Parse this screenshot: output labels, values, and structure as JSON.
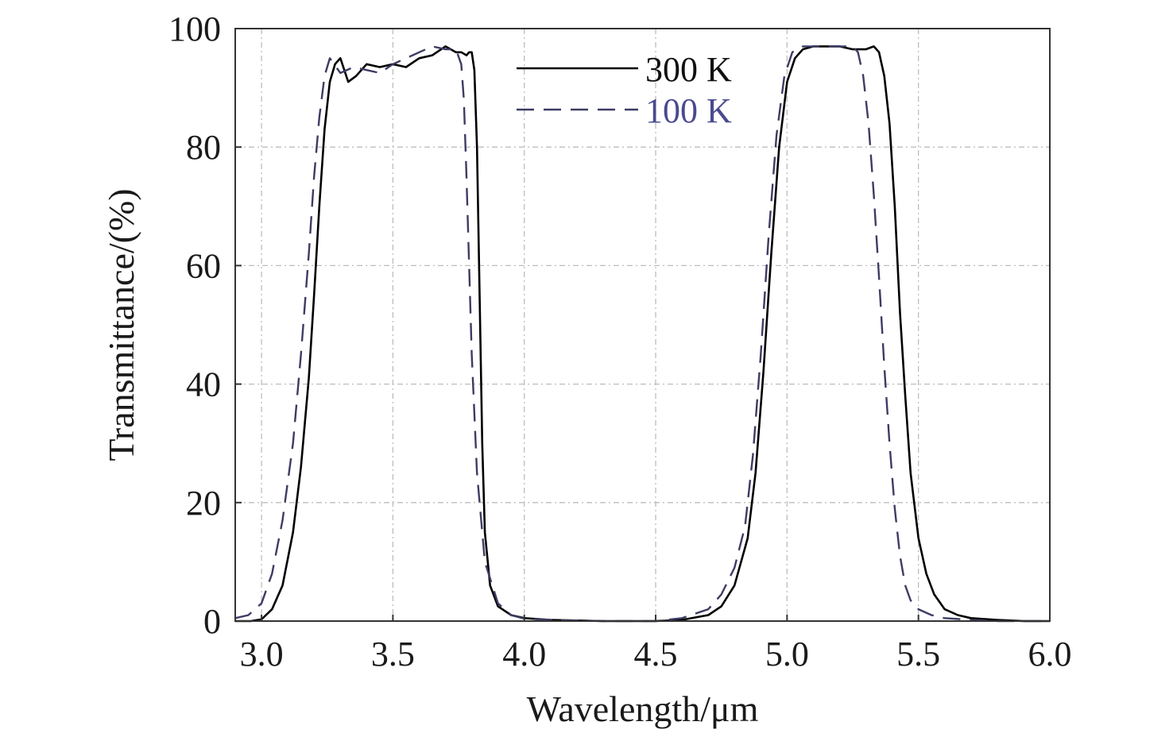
{
  "chart_data": {
    "type": "line",
    "xlabel": "Wavelength/μm",
    "ylabel": "Transmittance/(%)",
    "xlim": [
      2.9,
      6.0
    ],
    "ylim": [
      0,
      100
    ],
    "xticks": [
      "3.0",
      "3.5",
      "4.0",
      "4.5",
      "5.0",
      "5.5",
      "6.0"
    ],
    "yticks": [
      "0",
      "20",
      "40",
      "60",
      "80",
      "100"
    ],
    "grid": true,
    "legend_position": "top-center",
    "series": [
      {
        "name": "300 K",
        "color": "#000000",
        "style": "solid",
        "label_color": "#111111",
        "x": [
          2.9,
          2.96,
          3.0,
          3.04,
          3.08,
          3.12,
          3.15,
          3.18,
          3.2,
          3.22,
          3.24,
          3.26,
          3.28,
          3.3,
          3.33,
          3.36,
          3.4,
          3.45,
          3.5,
          3.55,
          3.6,
          3.65,
          3.7,
          3.74,
          3.76,
          3.78,
          3.79,
          3.8,
          3.81,
          3.82,
          3.83,
          3.84,
          3.85,
          3.87,
          3.9,
          3.95,
          4.0,
          4.1,
          4.3,
          4.5,
          4.6,
          4.7,
          4.75,
          4.8,
          4.85,
          4.88,
          4.91,
          4.94,
          4.97,
          5.0,
          5.03,
          5.06,
          5.1,
          5.15,
          5.2,
          5.25,
          5.3,
          5.33,
          5.35,
          5.37,
          5.39,
          5.41,
          5.43,
          5.45,
          5.47,
          5.5,
          5.53,
          5.56,
          5.6,
          5.65,
          5.7,
          5.8,
          5.9,
          6.0
        ],
        "y": [
          0,
          0,
          0.3,
          2,
          6,
          15,
          26,
          41,
          55,
          70,
          83,
          91,
          94,
          95,
          91,
          92,
          94,
          93.5,
          94,
          93.5,
          95,
          95.5,
          97,
          96,
          96,
          95.5,
          96,
          96,
          93,
          80,
          55,
          30,
          15,
          6,
          2.5,
          1,
          0.5,
          0.2,
          0,
          0,
          0.2,
          1,
          2.5,
          6,
          14,
          25,
          42,
          62,
          80,
          91,
          95,
          96.5,
          97,
          97,
          97,
          96.5,
          96.5,
          97,
          96,
          92,
          84,
          70,
          52,
          38,
          25,
          14,
          8,
          4.5,
          2,
          1,
          0.5,
          0.2,
          0,
          0
        ]
      },
      {
        "name": "100 K",
        "color": "#3c3c64",
        "style": "dashed",
        "label_color": "#4a4a8f",
        "x": [
          2.9,
          2.95,
          3.0,
          3.04,
          3.08,
          3.12,
          3.15,
          3.18,
          3.2,
          3.22,
          3.24,
          3.26,
          3.3,
          3.35,
          3.4,
          3.45,
          3.5,
          3.55,
          3.6,
          3.65,
          3.7,
          3.74,
          3.76,
          3.77,
          3.78,
          3.79,
          3.8,
          3.82,
          3.85,
          3.9,
          3.95,
          4.0,
          4.1,
          4.3,
          4.5,
          4.6,
          4.7,
          4.75,
          4.8,
          4.84,
          4.87,
          4.9,
          4.93,
          4.96,
          4.99,
          5.02,
          5.06,
          5.1,
          5.15,
          5.2,
          5.25,
          5.27,
          5.29,
          5.31,
          5.33,
          5.35,
          5.37,
          5.39,
          5.41,
          5.43,
          5.45,
          5.47,
          5.5,
          5.55,
          5.6,
          5.7,
          5.8,
          6.0
        ],
        "y": [
          0.5,
          1,
          3,
          8,
          17,
          30,
          45,
          62,
          75,
          85,
          92,
          95,
          92.5,
          93.5,
          93,
          92.5,
          94,
          95,
          96,
          97,
          96.5,
          96.5,
          94,
          88,
          75,
          60,
          45,
          25,
          10,
          3,
          1,
          0.4,
          0.2,
          0,
          0,
          0.5,
          2,
          4.5,
          9,
          16,
          28,
          45,
          65,
          82,
          92,
          96,
          97,
          97,
          97,
          97,
          97,
          96,
          92,
          84,
          72,
          58,
          43,
          30,
          19,
          11,
          6,
          3.5,
          2,
          1,
          0.5,
          0.2,
          0,
          0
        ]
      }
    ]
  }
}
